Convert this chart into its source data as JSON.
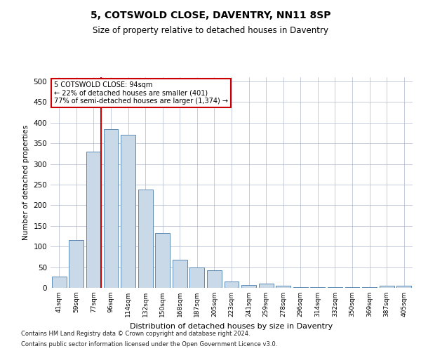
{
  "title": "5, COTSWOLD CLOSE, DAVENTRY, NN11 8SP",
  "subtitle": "Size of property relative to detached houses in Daventry",
  "xlabel": "Distribution of detached houses by size in Daventry",
  "ylabel": "Number of detached properties",
  "bar_color": "#c9d9e8",
  "bar_edge_color": "#5b8ab5",
  "background_color": "#ffffff",
  "grid_color": "#b0b8d0",
  "categories": [
    "41sqm",
    "59sqm",
    "77sqm",
    "96sqm",
    "114sqm",
    "132sqm",
    "150sqm",
    "168sqm",
    "187sqm",
    "205sqm",
    "223sqm",
    "241sqm",
    "259sqm",
    "278sqm",
    "296sqm",
    "314sqm",
    "332sqm",
    "350sqm",
    "369sqm",
    "387sqm",
    "405sqm"
  ],
  "values": [
    27,
    115,
    330,
    385,
    370,
    238,
    133,
    68,
    50,
    43,
    15,
    7,
    10,
    5,
    2,
    2,
    1,
    1,
    1,
    5,
    5
  ],
  "annotation_line1": "5 COTSWOLD CLOSE: 94sqm",
  "annotation_line2": "← 22% of detached houses are smaller (401)",
  "annotation_line3": "77% of semi-detached houses are larger (1,374) →",
  "marker_bin_index": 2,
  "annotation_box_color": "#ffffff",
  "annotation_box_edge_color": "#cc0000",
  "marker_line_color": "#cc0000",
  "ylim": [
    0,
    510
  ],
  "yticks": [
    0,
    50,
    100,
    150,
    200,
    250,
    300,
    350,
    400,
    450,
    500
  ],
  "footnote1": "Contains HM Land Registry data © Crown copyright and database right 2024.",
  "footnote2": "Contains public sector information licensed under the Open Government Licence v3.0."
}
